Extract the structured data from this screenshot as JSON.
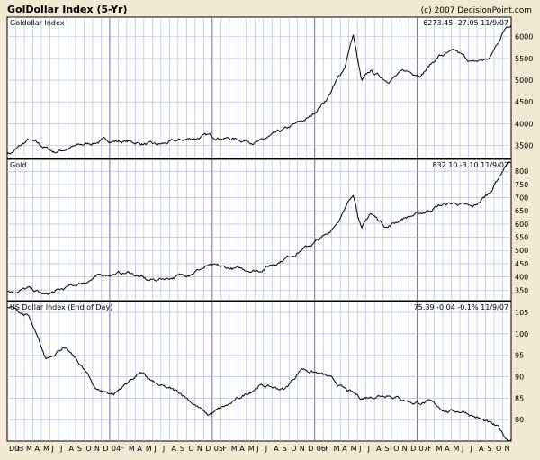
{
  "header": {
    "title": "GolDollar Index (5-Yr)",
    "copyright": "(c) 2007 DecisionPoint.com"
  },
  "colors": {
    "background": "#f2ead2",
    "plot_background": "#ffffff",
    "grid_minor": "#a8b4d8",
    "grid_year": "#7a5fb0",
    "series_line": "#000000"
  },
  "chart_data": [
    {
      "type": "line",
      "title": "Goldollar Index",
      "readout": "6273.45 -27.05 11/9/07",
      "yticks": [
        3500,
        4000,
        4500,
        5000,
        5500,
        6000
      ],
      "ylim": [
        3200,
        6450
      ],
      "x": [
        "2003-01",
        "2003-03",
        "2003-06",
        "2003-09",
        "2003-12",
        "2004-03",
        "2004-06",
        "2004-09",
        "2004-12",
        "2005-03",
        "2005-06",
        "2005-09",
        "2005-12",
        "2006-02",
        "2006-04",
        "2006-05",
        "2006-06",
        "2006-07",
        "2006-09",
        "2006-11",
        "2007-01",
        "2007-03",
        "2007-05",
        "2007-07",
        "2007-09",
        "2007-11"
      ],
      "values": [
        3330,
        3620,
        3350,
        3500,
        3620,
        3580,
        3500,
        3620,
        3720,
        3650,
        3580,
        3850,
        4150,
        4600,
        5300,
        6050,
        4950,
        5200,
        5000,
        5200,
        5150,
        5550,
        5650,
        5400,
        5500,
        6273
      ]
    },
    {
      "type": "line",
      "title": "Gold",
      "readout": "832.10 -3.10 11/9/07",
      "yticks": [
        350,
        400,
        450,
        500,
        550,
        600,
        650,
        700,
        750,
        800
      ],
      "ylim": [
        310,
        845
      ],
      "x": [
        "2003-01",
        "2003-03",
        "2003-05",
        "2003-09",
        "2003-12",
        "2004-03",
        "2004-05",
        "2004-09",
        "2004-12",
        "2005-03",
        "2005-06",
        "2005-09",
        "2005-12",
        "2006-02",
        "2006-04",
        "2006-05",
        "2006-06",
        "2006-07",
        "2006-09",
        "2006-11",
        "2007-01",
        "2007-03",
        "2007-05",
        "2007-07",
        "2007-09",
        "2007-11"
      ],
      "values": [
        345,
        355,
        330,
        375,
        410,
        415,
        385,
        405,
        440,
        430,
        425,
        470,
        520,
        560,
        650,
        720,
        580,
        640,
        590,
        625,
        640,
        670,
        680,
        660,
        720,
        832
      ]
    },
    {
      "type": "line",
      "title": "US Dollar Index (End of Day)",
      "readout": "75.39 -0.04 -0.1% 11/9/07",
      "yticks": [
        80,
        85,
        90,
        95,
        100,
        105
      ],
      "ylim": [
        75,
        107.5
      ],
      "xticks": [
        "D03",
        "F",
        "M",
        "A",
        "M",
        "J",
        "J",
        "A",
        "S",
        "O",
        "N",
        "D",
        "04",
        "F",
        "M",
        "A",
        "M",
        "J",
        "J",
        "A",
        "S",
        "O",
        "N",
        "D",
        "05",
        "F",
        "M",
        "A",
        "M",
        "J",
        "J",
        "A",
        "S",
        "O",
        "N",
        "D",
        "06",
        "F",
        "M",
        "A",
        "M",
        "J",
        "J",
        "A",
        "S",
        "O",
        "N",
        "D",
        "07",
        "F",
        "M",
        "A",
        "M",
        "J",
        "J",
        "A",
        "S",
        "O",
        "N"
      ],
      "x": [
        "2003-01",
        "2003-03",
        "2003-05",
        "2003-07",
        "2003-09",
        "2003-11",
        "2004-01",
        "2004-04",
        "2004-06",
        "2004-09",
        "2004-12",
        "2005-03",
        "2005-06",
        "2005-09",
        "2005-11",
        "2006-02",
        "2006-04",
        "2006-06",
        "2006-09",
        "2006-12",
        "2007-02",
        "2007-04",
        "2007-06",
        "2007-08",
        "2007-10",
        "2007-11"
      ],
      "values": [
        106,
        104,
        94,
        97,
        93,
        87,
        86,
        91,
        88,
        86,
        81,
        84,
        88,
        87,
        92,
        90,
        87,
        85,
        86,
        84,
        84,
        82,
        82,
        80,
        78,
        75.4
      ]
    }
  ]
}
